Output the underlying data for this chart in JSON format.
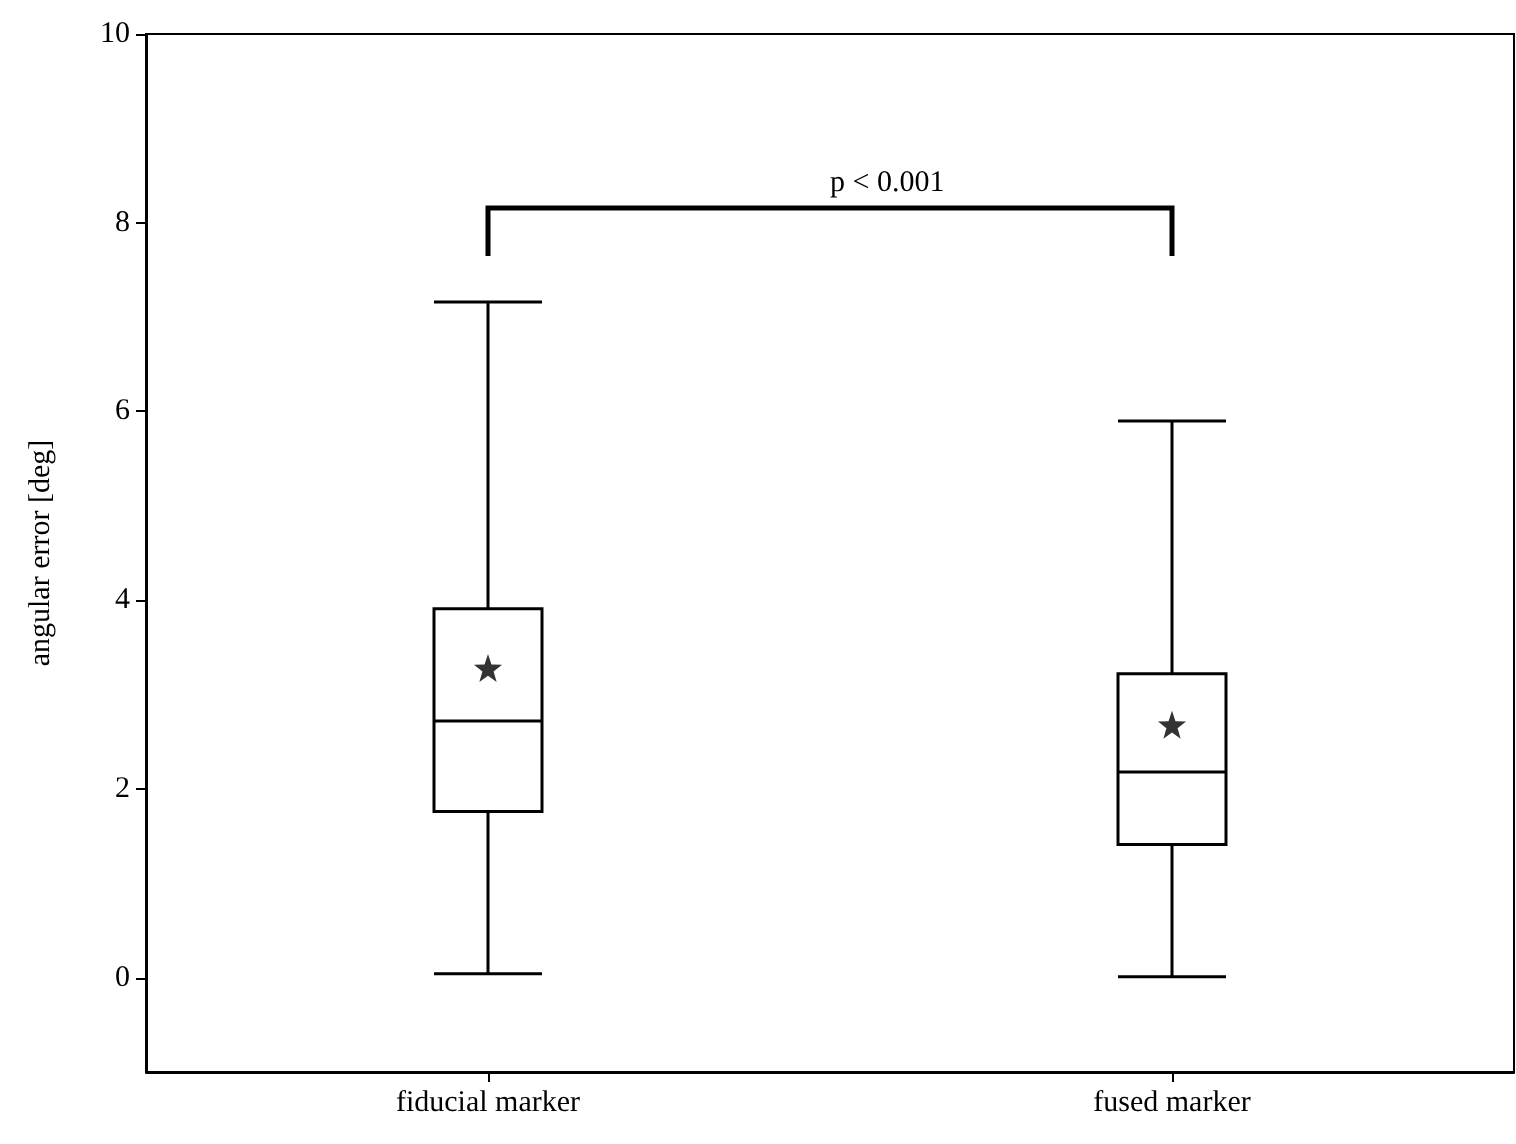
{
  "chart_data": {
    "type": "box",
    "ylabel": "angular error [deg]",
    "categories": [
      "fiducial marker",
      "fused marker"
    ],
    "boxes": [
      {
        "low": 0.04,
        "q1": 1.76,
        "median": 2.72,
        "q3": 3.91,
        "high": 7.16,
        "mean": 3.28
      },
      {
        "low": 0.01,
        "q1": 1.41,
        "median": 2.18,
        "q3": 3.22,
        "high": 5.9,
        "mean": 2.68
      }
    ],
    "color": "#000000",
    "marker": "star",
    "ylim": [
      -1,
      10
    ],
    "yticks": [
      0,
      2,
      4,
      6,
      8,
      10
    ],
    "annotations": [
      "p < 0.001"
    ]
  }
}
